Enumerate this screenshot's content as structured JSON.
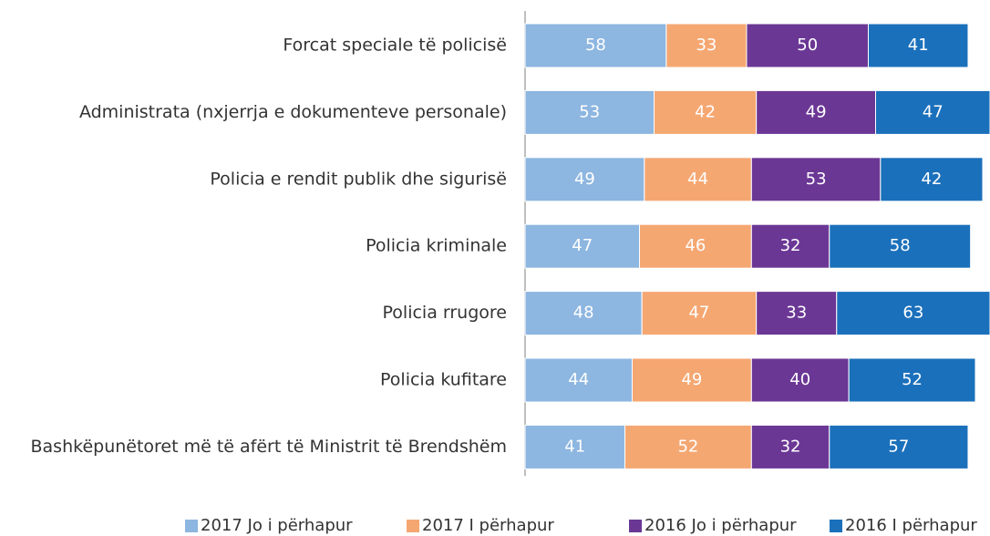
{
  "chart_data": {
    "type": "stacked_bar_horizontal",
    "categories": [
      "Forcat speciale të policisë",
      "Administrata (nxjerrja e dokumenteve personale)",
      "Policia e rendit publik dhe sigurisë",
      "Policia kriminale",
      "Policia rrugore",
      "Policia kufitare",
      "Bashkëpunëtoret më të afërt të Ministrit të Brendshëm"
    ],
    "series": [
      {
        "name": "2017 Jo i përhapur",
        "color": "#8db6e0",
        "values": [
          58,
          53,
          49,
          47,
          48,
          44,
          41
        ]
      },
      {
        "name": "2017 I përhapur",
        "color": "#f5a772",
        "values": [
          33,
          42,
          44,
          46,
          47,
          49,
          52
        ]
      },
      {
        "name": "2016 Jo i përhapur",
        "color": "#6b3795",
        "values": [
          50,
          49,
          53,
          32,
          33,
          40,
          32
        ]
      },
      {
        "name": "2016 I përhapur",
        "color": "#1b70bb",
        "values": [
          41,
          47,
          42,
          58,
          63,
          52,
          57
        ]
      }
    ],
    "legend": "bottom"
  }
}
